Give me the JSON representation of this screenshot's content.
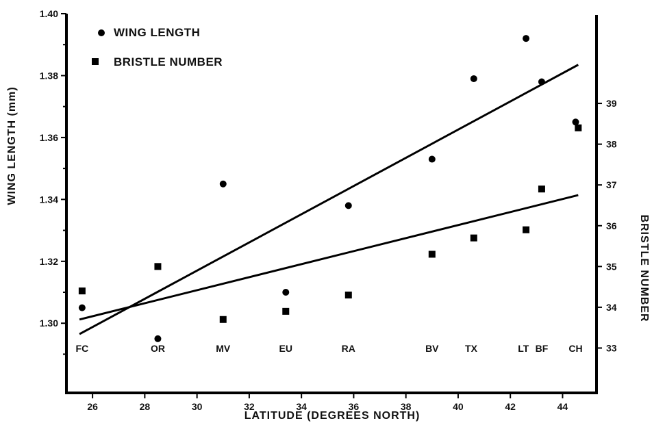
{
  "chart_data": {
    "type": "scatter",
    "x_label": "LATITUDE  (DEGREES NORTH)",
    "y_label_left": "WING LENGTH  (mm)",
    "y_label_right": "BRISTLE NUMBER",
    "x_ticks": [
      "26",
      "28",
      "30",
      "32",
      "34",
      "36",
      "38",
      "40",
      "42",
      "44"
    ],
    "y_left_ticks": [
      "1.30",
      "1.32",
      "1.34",
      "1.36",
      "1.38",
      "1.40"
    ],
    "y_right_ticks": [
      "33",
      "34",
      "35",
      "36",
      "37",
      "38",
      "39"
    ],
    "xlim": [
      25,
      45.3
    ],
    "ylim_left": [
      1.2775,
      1.4
    ],
    "ylim_right": [
      31.9,
      41.2
    ],
    "legend": {
      "position": "top-left",
      "entries": [
        {
          "marker": "circle",
          "label": "WING LENGTH"
        },
        {
          "marker": "square",
          "label": "BRISTLE NUMBER"
        }
      ]
    },
    "populations": [
      {
        "name": "FC",
        "latitude": 25.6
      },
      {
        "name": "OR",
        "latitude": 28.5
      },
      {
        "name": "MV",
        "latitude": 31.0
      },
      {
        "name": "EU",
        "latitude": 33.4
      },
      {
        "name": "RA",
        "latitude": 35.8
      },
      {
        "name": "BV",
        "latitude": 39.0
      },
      {
        "name": "TX",
        "latitude": 40.5
      },
      {
        "name": "LT",
        "latitude": 42.5
      },
      {
        "name": "BF",
        "latitude": 43.2
      },
      {
        "name": "CH",
        "latitude": 44.5
      }
    ],
    "series": [
      {
        "name": "WING LENGTH",
        "axis": "left",
        "marker": "circle",
        "points": [
          {
            "x": 25.6,
            "y": 1.305
          },
          {
            "x": 28.5,
            "y": 1.295
          },
          {
            "x": 31.0,
            "y": 1.345
          },
          {
            "x": 33.4,
            "y": 1.31
          },
          {
            "x": 35.8,
            "y": 1.338
          },
          {
            "x": 39.0,
            "y": 1.353
          },
          {
            "x": 40.6,
            "y": 1.379
          },
          {
            "x": 42.6,
            "y": 1.392
          },
          {
            "x": 43.2,
            "y": 1.378
          },
          {
            "x": 44.5,
            "y": 1.365
          }
        ],
        "trend": [
          {
            "x": 25.5,
            "y": 1.2965
          },
          {
            "x": 44.6,
            "y": 1.3835
          }
        ]
      },
      {
        "name": "BRISTLE NUMBER",
        "axis": "right",
        "marker": "square",
        "points": [
          {
            "x": 25.6,
            "y": 34.4
          },
          {
            "x": 28.5,
            "y": 35.0
          },
          {
            "x": 31.0,
            "y": 33.7
          },
          {
            "x": 33.4,
            "y": 33.9
          },
          {
            "x": 35.8,
            "y": 34.3
          },
          {
            "x": 39.0,
            "y": 35.3
          },
          {
            "x": 40.6,
            "y": 35.7
          },
          {
            "x": 42.6,
            "y": 35.9
          },
          {
            "x": 43.2,
            "y": 36.9
          },
          {
            "x": 44.6,
            "y": 38.4
          }
        ],
        "trend": [
          {
            "x": 25.5,
            "y": 33.7
          },
          {
            "x": 44.6,
            "y": 36.75
          }
        ]
      }
    ]
  }
}
